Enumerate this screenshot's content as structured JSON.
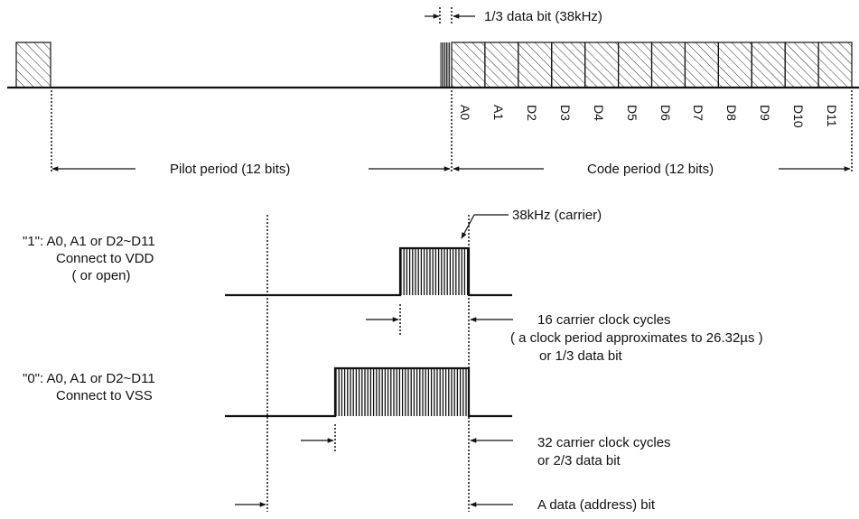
{
  "top": {
    "third_bit_label": "1/3 data bit (38kHz)",
    "bit_labels": [
      "A0",
      "A1",
      "D2",
      "D3",
      "D4",
      "D5",
      "D6",
      "D7",
      "D8",
      "D9",
      "D10",
      "D11"
    ],
    "pilot_label": "Pilot period (12 bits)",
    "code_label": "Code period (12 bits)"
  },
  "carrier": {
    "label": "38kHz (carrier)"
  },
  "bit_one": {
    "desc_line1": "\"1\":  A0, A1 or D2~D11",
    "desc_line2": "Connect to VDD",
    "desc_line3": "( or open)",
    "cycles_line1": "16 carrier clock cycles",
    "cycles_line2": "( a clock period approximates to 26.32µs )",
    "cycles_line3": "or  1/3 data bit"
  },
  "bit_zero": {
    "desc_line1": "\"0\":  A0, A1 or D2~D11",
    "desc_line2": "Connect to VSS",
    "cycles_line1": "32 carrier clock cycles",
    "cycles_line2": "or  2/3 data bit"
  },
  "address_bit_label": "A data (address) bit",
  "colors": {
    "ink": "#111111",
    "background": "#ffffff"
  }
}
